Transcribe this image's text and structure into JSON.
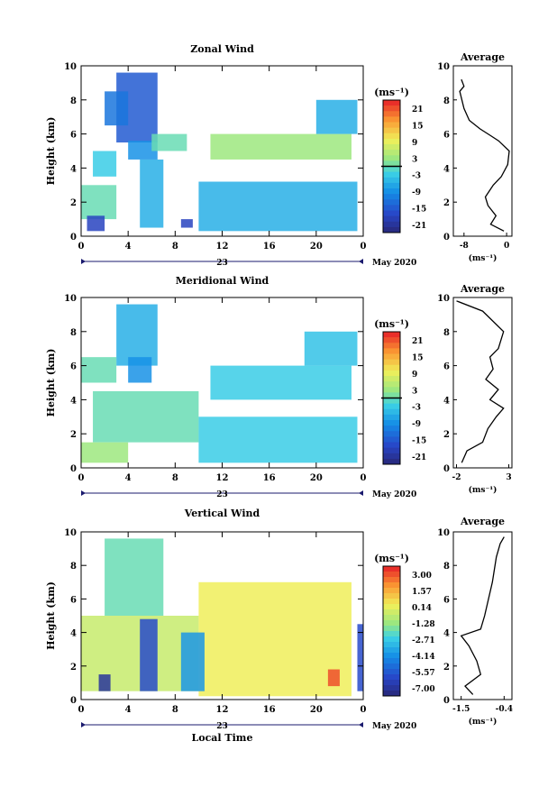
{
  "figure": {
    "shared_x_date_label": "23",
    "shared_month_label": "May 2020",
    "x_axis_title": "Local Time"
  },
  "chart_data": [
    {
      "type": "heatmap",
      "title": "Zonal Wind",
      "ylabel": "Height (km)",
      "xlim": [
        0,
        24
      ],
      "ylim": [
        0,
        10
      ],
      "x_ticks": [
        "0",
        "4",
        "8",
        "12",
        "16",
        "20",
        "0"
      ],
      "y_ticks": [
        "0",
        "2",
        "4",
        "6",
        "8",
        "10"
      ],
      "colorbar": {
        "unit_label": "(ms⁻¹)",
        "tick_labels": [
          "21",
          "15",
          "9",
          "3",
          "-3",
          "-9",
          "-15",
          "-21"
        ],
        "range": [
          -24,
          24
        ],
        "zero_line": true
      },
      "cells": [
        {
          "x": [
            3,
            6.5
          ],
          "y": [
            5.5,
            9.6
          ],
          "value": -15
        },
        {
          "x": [
            2,
            4
          ],
          "y": [
            6.5,
            8.5
          ],
          "value": -12
        },
        {
          "x": [
            4,
            6.5
          ],
          "y": [
            4.5,
            5.6
          ],
          "value": -9
        },
        {
          "x": [
            1,
            3
          ],
          "y": [
            3.5,
            5
          ],
          "value": -3
        },
        {
          "x": [
            5,
            7
          ],
          "y": [
            0.5,
            4.5
          ],
          "value": -6
        },
        {
          "x": [
            10,
            23.5
          ],
          "y": [
            0.3,
            3.2
          ],
          "value": -6
        },
        {
          "x": [
            11,
            23
          ],
          "y": [
            4.5,
            6
          ],
          "value": 3
        },
        {
          "x": [
            20,
            23.5
          ],
          "y": [
            6,
            8
          ],
          "value": -6
        },
        {
          "x": [
            6,
            9
          ],
          "y": [
            5,
            6
          ],
          "value": 0
        },
        {
          "x": [
            0,
            3
          ],
          "y": [
            1,
            3
          ],
          "value": 0
        },
        {
          "x": [
            0.5,
            2
          ],
          "y": [
            0.3,
            1.2
          ],
          "value": -18
        },
        {
          "x": [
            8.5,
            9.5
          ],
          "y": [
            0.5,
            1
          ],
          "value": -18
        }
      ],
      "profile": {
        "title": "Average",
        "xlabel": "(ms⁻¹)",
        "xlim": [
          -10,
          1
        ],
        "x_ticks": [
          "-8",
          "0"
        ],
        "y_ticks": [
          "0",
          "2",
          "4",
          "6",
          "8",
          "10"
        ],
        "values": [
          [
            -0.5,
            0.3
          ],
          [
            -3,
            0.7
          ],
          [
            -2,
            1.2
          ],
          [
            -3.5,
            1.8
          ],
          [
            -4,
            2.3
          ],
          [
            -2.5,
            3
          ],
          [
            -1,
            3.5
          ],
          [
            0.2,
            4.2
          ],
          [
            0.5,
            5
          ],
          [
            -1.5,
            5.6
          ],
          [
            -3,
            5.9
          ],
          [
            -5,
            6.3
          ],
          [
            -7,
            6.8
          ],
          [
            -8,
            7.5
          ],
          [
            -8.8,
            8.5
          ],
          [
            -8,
            8.8
          ],
          [
            -8.5,
            9.2
          ]
        ]
      }
    },
    {
      "type": "heatmap",
      "title": "Meridional Wind",
      "ylabel": "Height (km)",
      "xlim": [
        0,
        24
      ],
      "ylim": [
        0,
        10
      ],
      "x_ticks": [
        "0",
        "4",
        "8",
        "12",
        "16",
        "20",
        "0"
      ],
      "y_ticks": [
        "0",
        "2",
        "4",
        "6",
        "8",
        "10"
      ],
      "colorbar": {
        "unit_label": "(ms⁻¹)",
        "tick_labels": [
          "21",
          "15",
          "9",
          "3",
          "-3",
          "-9",
          "-15",
          "-21"
        ],
        "range": [
          -24,
          24
        ],
        "zero_line": true
      },
      "cells": [
        {
          "x": [
            3,
            6.5
          ],
          "y": [
            6,
            9.6
          ],
          "value": -6
        },
        {
          "x": [
            4,
            6
          ],
          "y": [
            5,
            6.5
          ],
          "value": -9
        },
        {
          "x": [
            0,
            3
          ],
          "y": [
            5,
            6.5
          ],
          "value": 0
        },
        {
          "x": [
            1,
            10
          ],
          "y": [
            1.5,
            4.5
          ],
          "value": 0
        },
        {
          "x": [
            10,
            23.5
          ],
          "y": [
            0.3,
            3
          ],
          "value": -3
        },
        {
          "x": [
            11,
            23
          ],
          "y": [
            4,
            6
          ],
          "value": -3
        },
        {
          "x": [
            19,
            23.5
          ],
          "y": [
            6,
            8
          ],
          "value": -4
        },
        {
          "x": [
            0,
            4
          ],
          "y": [
            0.3,
            1.5
          ],
          "value": 3
        }
      ],
      "profile": {
        "title": "Average",
        "xlabel": "(ms⁻¹)",
        "xlim": [
          -2.3,
          3.3
        ],
        "x_ticks": [
          "-2",
          "3"
        ],
        "y_ticks": [
          "0",
          "2",
          "4",
          "6",
          "8",
          "10"
        ],
        "values": [
          [
            -1.5,
            0.3
          ],
          [
            -1,
            1
          ],
          [
            0.5,
            1.5
          ],
          [
            1,
            2.3
          ],
          [
            1.8,
            3
          ],
          [
            2.5,
            3.5
          ],
          [
            1.2,
            4
          ],
          [
            2,
            4.6
          ],
          [
            0.8,
            5.2
          ],
          [
            1.5,
            5.8
          ],
          [
            1.2,
            6.5
          ],
          [
            2,
            7
          ],
          [
            2.5,
            8
          ],
          [
            0.5,
            9.2
          ],
          [
            -2,
            9.8
          ]
        ]
      }
    },
    {
      "type": "heatmap",
      "title": "Vertical Wind",
      "ylabel": "Height (km)",
      "xlabel": "Local Time",
      "xlim": [
        0,
        24
      ],
      "ylim": [
        0,
        10
      ],
      "x_ticks": [
        "0",
        "4",
        "8",
        "12",
        "16",
        "20",
        "0"
      ],
      "y_ticks": [
        "0",
        "2",
        "4",
        "6",
        "8",
        "10"
      ],
      "colorbar": {
        "unit_label": "(ms⁻¹)",
        "tick_labels": [
          "3.00",
          "1.57",
          "0.14",
          "-1.28",
          "-2.71",
          "-4.14",
          "-5.57",
          "-7.00"
        ],
        "range": [
          -7.7,
          3.7
        ],
        "zero_line": false
      },
      "cells": [
        {
          "x": [
            2,
            7
          ],
          "y": [
            5,
            9.6
          ],
          "value": -2
        },
        {
          "x": [
            0,
            10
          ],
          "y": [
            0.5,
            5
          ],
          "value": -0.5
        },
        {
          "x": [
            10,
            23
          ],
          "y": [
            0.2,
            7
          ],
          "value": 0.3
        },
        {
          "x": [
            5,
            6.5
          ],
          "y": [
            0.5,
            4.8
          ],
          "value": -6
        },
        {
          "x": [
            8.5,
            10.5
          ],
          "y": [
            0.5,
            4
          ],
          "value": -4
        },
        {
          "x": [
            1.5,
            2.5
          ],
          "y": [
            0.5,
            1.5
          ],
          "value": -7
        },
        {
          "x": [
            21,
            22
          ],
          "y": [
            0.8,
            1.8
          ],
          "value": 3
        },
        {
          "x": [
            23.5,
            24
          ],
          "y": [
            0.5,
            4.5
          ],
          "value": -6
        }
      ],
      "profile": {
        "title": "Average",
        "xlabel": "(ms⁻¹)",
        "xlim": [
          -1.7,
          -0.2
        ],
        "x_ticks": [
          "-1.5",
          "-0.4"
        ],
        "y_ticks": [
          "0",
          "2",
          "4",
          "6",
          "8",
          "10"
        ],
        "values": [
          [
            -1.2,
            0.3
          ],
          [
            -1.4,
            0.8
          ],
          [
            -1.0,
            1.5
          ],
          [
            -1.1,
            2.3
          ],
          [
            -1.3,
            3.2
          ],
          [
            -1.5,
            3.8
          ],
          [
            -1.0,
            4.2
          ],
          [
            -0.9,
            5
          ],
          [
            -0.8,
            6
          ],
          [
            -0.7,
            7
          ],
          [
            -0.6,
            8.5
          ],
          [
            -0.5,
            9.3
          ],
          [
            -0.4,
            9.7
          ]
        ]
      }
    }
  ]
}
